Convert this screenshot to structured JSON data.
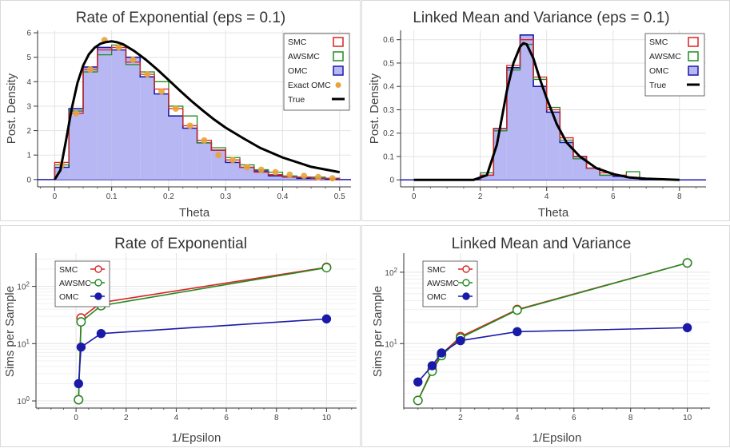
{
  "colors": {
    "smc": "#dd2222",
    "awsmc": "#228b22",
    "omc": "#1a1aa8",
    "omc_fill": "#b7b7f3",
    "exact_omc": "#e8a33a",
    "true": "#000000",
    "grid": "#e3e3e3"
  },
  "chart_data": [
    {
      "type": "bar",
      "title": "Rate of Exponential  (eps = 0.1)",
      "xlabel": "Theta",
      "ylabel": "Post. Density",
      "xlim": [
        -0.03,
        0.52
      ],
      "ylim": [
        -0.3,
        6.1
      ],
      "xticks": [
        0,
        0.1,
        0.2,
        0.3,
        0.4,
        0.5
      ],
      "xtick_labels": [
        "0",
        "0.1",
        "0.2",
        "0.3",
        "0.4",
        "0.5"
      ],
      "yticks": [
        0,
        1,
        2,
        3,
        4,
        5,
        6
      ],
      "ytick_labels": [
        "0",
        "1",
        "2",
        "3",
        "4",
        "5",
        "6"
      ],
      "grid": true,
      "legend_position": "top-right",
      "bin_width": 0.025,
      "bin_starts": [
        0,
        0.025,
        0.05,
        0.075,
        0.1,
        0.125,
        0.15,
        0.175,
        0.2,
        0.225,
        0.25,
        0.275,
        0.3,
        0.325,
        0.35,
        0.375,
        0.4,
        0.425,
        0.45,
        0.475
      ],
      "series": [
        {
          "name": "SMC",
          "kind": "step",
          "values": [
            0.7,
            2.7,
            4.5,
            5.3,
            5.4,
            4.8,
            4.3,
            3.7,
            2.9,
            2.2,
            1.6,
            1.2,
            0.8,
            0.5,
            0.3,
            0.2,
            0.1,
            0.1,
            0.05,
            0.05
          ]
        },
        {
          "name": "AWSMC",
          "kind": "step",
          "values": [
            0.6,
            2.8,
            4.4,
            5.1,
            5.5,
            4.7,
            4.4,
            4.0,
            3.0,
            2.6,
            1.5,
            1.3,
            0.9,
            0.6,
            0.4,
            0.3,
            0.15,
            0.1,
            0.1,
            0.05
          ]
        },
        {
          "name": "OMC",
          "kind": "filled-step",
          "values": [
            0.5,
            2.9,
            4.6,
            5.4,
            5.3,
            5.0,
            4.2,
            3.5,
            2.6,
            2.1,
            1.5,
            1.2,
            0.7,
            0.5,
            0.35,
            0.15,
            0.1,
            0.05,
            0.05,
            0.02
          ]
        },
        {
          "name": "Exact OMC",
          "kind": "points",
          "x": [
            0.0125,
            0.0375,
            0.0625,
            0.0875,
            0.1125,
            0.1375,
            0.1625,
            0.1875,
            0.2125,
            0.2375,
            0.2625,
            0.2875,
            0.3125,
            0.3375,
            0.3625,
            0.3875,
            0.4125,
            0.4375,
            0.4625,
            0.4875
          ],
          "y": [
            0.6,
            2.7,
            4.5,
            5.7,
            5.4,
            4.9,
            4.3,
            3.6,
            2.9,
            2.2,
            1.6,
            1.0,
            0.8,
            0.5,
            0.4,
            0.3,
            0.2,
            0.15,
            0.1,
            0.05
          ]
        },
        {
          "name": "True",
          "kind": "line",
          "x": [
            0,
            0.01,
            0.02,
            0.03,
            0.04,
            0.05,
            0.06,
            0.07,
            0.08,
            0.09,
            0.1,
            0.11,
            0.12,
            0.14,
            0.16,
            0.18,
            0.2,
            0.22,
            0.24,
            0.26,
            0.28,
            0.3,
            0.33,
            0.36,
            0.4,
            0.45,
            0.5
          ],
          "y": [
            0,
            0.38,
            1.61,
            2.91,
            3.95,
            4.66,
            5.12,
            5.39,
            5.55,
            5.62,
            5.65,
            5.61,
            5.53,
            5.25,
            4.9,
            4.5,
            4.07,
            3.63,
            3.21,
            2.82,
            2.45,
            2.12,
            1.7,
            1.3,
            0.9,
            0.52,
            0.3
          ]
        }
      ]
    },
    {
      "type": "bar",
      "title": "Linked Mean and Variance  (eps = 0.1)",
      "xlabel": "Theta",
      "ylabel": "Post. Density",
      "xlim": [
        -0.4,
        8.8
      ],
      "ylim": [
        -0.03,
        0.64
      ],
      "xticks": [
        0,
        2,
        4,
        6,
        8
      ],
      "xtick_labels": [
        "0",
        "2",
        "4",
        "6",
        "8"
      ],
      "yticks": [
        0,
        0.1,
        0.2,
        0.3,
        0.4,
        0.5,
        0.6
      ],
      "ytick_labels": [
        "0",
        "0.1",
        "0.2",
        "0.3",
        "0.4",
        "0.5",
        "0.6"
      ],
      "grid": true,
      "legend_position": "top-right",
      "bin_width": 0.4,
      "bin_starts": [
        2.0,
        2.4,
        2.8,
        3.2,
        3.6,
        4.0,
        4.4,
        4.8,
        5.2,
        5.6,
        6.0,
        6.4
      ],
      "series": [
        {
          "name": "SMC",
          "kind": "step",
          "values": [
            0.02,
            0.22,
            0.49,
            0.6,
            0.44,
            0.3,
            0.18,
            0.1,
            0.05,
            0.03,
            0.02,
            0.01
          ]
        },
        {
          "name": "AWSMC",
          "kind": "step",
          "values": [
            0.03,
            0.21,
            0.47,
            0.58,
            0.43,
            0.31,
            0.17,
            0.09,
            0.05,
            0.02,
            0.02,
            0.035
          ]
        },
        {
          "name": "OMC",
          "kind": "filled-step",
          "values": [
            0.02,
            0.22,
            0.48,
            0.62,
            0.4,
            0.29,
            0.16,
            0.1,
            0.05,
            0.02,
            0.015,
            0.01
          ]
        },
        {
          "name": "True",
          "kind": "line",
          "x": [
            0,
            1,
            1.8,
            2.2,
            2.5,
            2.8,
            3.0,
            3.2,
            3.3,
            3.4,
            3.6,
            3.8,
            4.0,
            4.3,
            4.6,
            5.0,
            5.5,
            6.0,
            6.5,
            7.0,
            8.0
          ],
          "y": [
            0,
            0,
            0.0,
            0.02,
            0.15,
            0.38,
            0.5,
            0.57,
            0.585,
            0.58,
            0.52,
            0.43,
            0.35,
            0.24,
            0.16,
            0.1,
            0.05,
            0.025,
            0.01,
            0.005,
            0
          ]
        }
      ]
    },
    {
      "type": "line",
      "title": "Rate of Exponential",
      "xlabel": "1/Epsilon",
      "ylabel": "Sims per Sample",
      "xscale": "linear",
      "yscale": "log",
      "xlim": [
        -1.6,
        11.2
      ],
      "ylim": [
        0.75,
        380
      ],
      "xticks": [
        0,
        2,
        4,
        6,
        8,
        10
      ],
      "xtick_labels": [
        "0",
        "2",
        "4",
        "6",
        "8",
        "10"
      ],
      "yticks": [
        1,
        10,
        100
      ],
      "ytick_labels": [
        "10^0",
        "10^1",
        "10^2"
      ],
      "grid": true,
      "legend_position": "top-left",
      "series": [
        {
          "name": "SMC",
          "marker": "open-circle",
          "x": [
            0.1,
            0.2,
            1,
            10
          ],
          "y": [
            1.05,
            28,
            52,
            215
          ]
        },
        {
          "name": "AWSMC",
          "marker": "open-circle",
          "x": [
            0.1,
            0.2,
            1,
            10
          ],
          "y": [
            1.05,
            24,
            46,
            212
          ]
        },
        {
          "name": "OMC",
          "marker": "filled-circle",
          "x": [
            0.1,
            0.2,
            1,
            10
          ],
          "y": [
            2.0,
            8.7,
            15,
            27
          ]
        }
      ]
    },
    {
      "type": "line",
      "title": "Linked Mean and Variance",
      "xlabel": "1/Epsilon",
      "ylabel": "Sims per Sample",
      "xscale": "linear",
      "yscale": "log",
      "xlim": [
        0,
        10.8
      ],
      "ylim": [
        1.25,
        185
      ],
      "xticks": [
        2,
        4,
        6,
        8,
        10
      ],
      "xtick_labels": [
        "2",
        "4",
        "6",
        "8",
        "10"
      ],
      "yticks": [
        10,
        100
      ],
      "ytick_labels": [
        "10^1",
        "10^2"
      ],
      "grid": true,
      "legend_position": "top-left",
      "series": [
        {
          "name": "SMC",
          "marker": "open-circle",
          "x": [
            0.5,
            1,
            1.33,
            2,
            4,
            10
          ],
          "y": [
            1.6,
            4.3,
            7.1,
            12.5,
            30,
            135
          ]
        },
        {
          "name": "AWSMC",
          "marker": "open-circle",
          "x": [
            0.5,
            1,
            1.33,
            2,
            4,
            10
          ],
          "y": [
            1.6,
            4.1,
            6.8,
            12,
            29.5,
            135
          ]
        },
        {
          "name": "OMC",
          "marker": "filled-circle",
          "x": [
            0.5,
            1,
            1.33,
            2,
            4,
            10
          ],
          "y": [
            2.9,
            4.9,
            7.4,
            11,
            14.7,
            16.7
          ]
        }
      ]
    }
  ]
}
